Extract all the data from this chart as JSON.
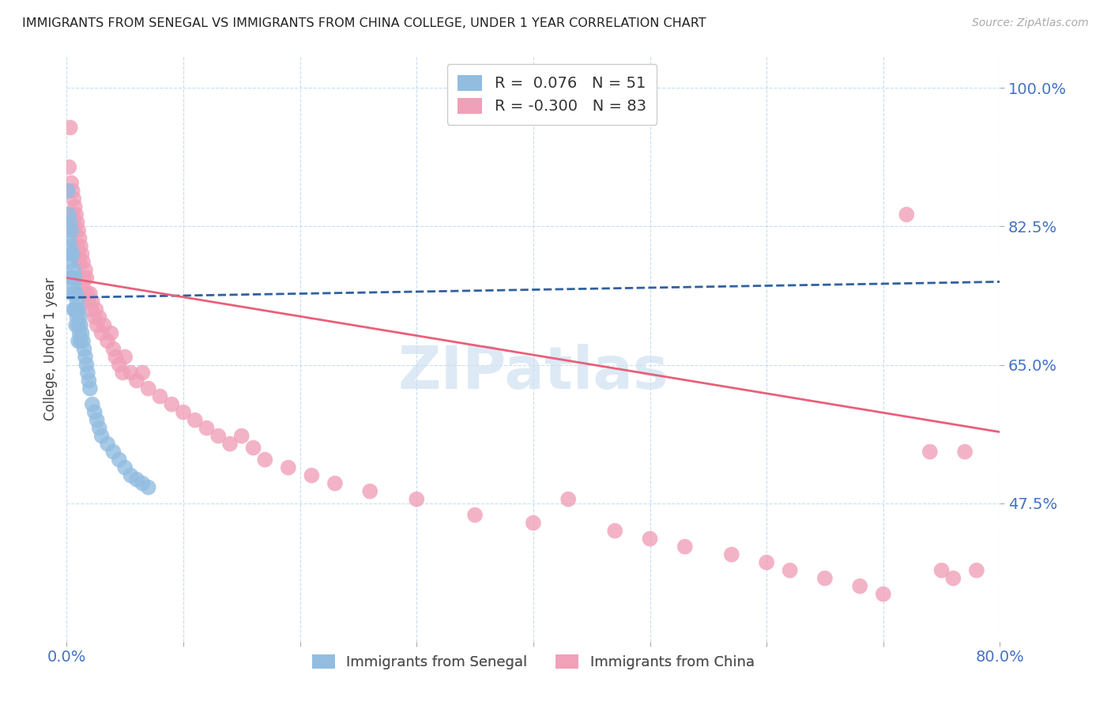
{
  "title": "IMMIGRANTS FROM SENEGAL VS IMMIGRANTS FROM CHINA COLLEGE, UNDER 1 YEAR CORRELATION CHART",
  "source": "Source: ZipAtlas.com",
  "ylabel": "College, Under 1 year",
  "x_min": 0.0,
  "x_max": 0.8,
  "y_min": 0.3,
  "y_max": 1.04,
  "y_ticks": [
    1.0,
    0.825,
    0.65,
    0.475
  ],
  "y_tick_labels": [
    "100.0%",
    "82.5%",
    "65.0%",
    "47.5%"
  ],
  "x_ticks": [
    0.0,
    0.1,
    0.2,
    0.3,
    0.4,
    0.5,
    0.6,
    0.7,
    0.8
  ],
  "x_tick_labels": [
    "0.0%",
    "",
    "",
    "",
    "",
    "",
    "",
    "",
    "80.0%"
  ],
  "legend_r_senegal": " 0.076",
  "legend_n_senegal": "51",
  "legend_r_china": "-0.300",
  "legend_n_china": "83",
  "senegal_dot_color": "#92bde0",
  "china_dot_color": "#f0a0b8",
  "senegal_line_color": "#3060a0",
  "china_line_color": "#e8607a",
  "axis_label_color": "#4472c4",
  "title_color": "#222222",
  "grid_color": "#c8ddf0",
  "watermark_color": "#cce0f0",
  "senegal_line_start_y": 0.735,
  "senegal_line_end_y": 0.755,
  "china_line_start_y": 0.76,
  "china_line_end_y": 0.565,
  "senegal_x": [
    0.001,
    0.002,
    0.002,
    0.003,
    0.003,
    0.003,
    0.004,
    0.004,
    0.004,
    0.005,
    0.005,
    0.005,
    0.006,
    0.006,
    0.006,
    0.007,
    0.007,
    0.007,
    0.008,
    0.008,
    0.008,
    0.009,
    0.009,
    0.01,
    0.01,
    0.01,
    0.011,
    0.011,
    0.012,
    0.012,
    0.013,
    0.014,
    0.015,
    0.016,
    0.017,
    0.018,
    0.019,
    0.02,
    0.022,
    0.024,
    0.026,
    0.028,
    0.03,
    0.035,
    0.04,
    0.045,
    0.05,
    0.055,
    0.06,
    0.065,
    0.07
  ],
  "senegal_y": [
    0.87,
    0.84,
    0.81,
    0.83,
    0.8,
    0.78,
    0.82,
    0.79,
    0.76,
    0.79,
    0.76,
    0.74,
    0.77,
    0.75,
    0.72,
    0.76,
    0.74,
    0.72,
    0.74,
    0.72,
    0.7,
    0.73,
    0.71,
    0.72,
    0.7,
    0.68,
    0.71,
    0.69,
    0.7,
    0.68,
    0.69,
    0.68,
    0.67,
    0.66,
    0.65,
    0.64,
    0.63,
    0.62,
    0.6,
    0.59,
    0.58,
    0.57,
    0.56,
    0.55,
    0.54,
    0.53,
    0.52,
    0.51,
    0.505,
    0.5,
    0.495
  ],
  "china_x": [
    0.002,
    0.003,
    0.004,
    0.005,
    0.005,
    0.006,
    0.006,
    0.007,
    0.007,
    0.008,
    0.008,
    0.009,
    0.009,
    0.01,
    0.01,
    0.011,
    0.011,
    0.012,
    0.013,
    0.013,
    0.014,
    0.014,
    0.015,
    0.016,
    0.016,
    0.017,
    0.018,
    0.019,
    0.02,
    0.021,
    0.022,
    0.024,
    0.025,
    0.026,
    0.028,
    0.03,
    0.032,
    0.035,
    0.038,
    0.04,
    0.042,
    0.045,
    0.048,
    0.05,
    0.055,
    0.06,
    0.065,
    0.07,
    0.08,
    0.09,
    0.1,
    0.11,
    0.12,
    0.13,
    0.14,
    0.15,
    0.16,
    0.17,
    0.19,
    0.21,
    0.23,
    0.26,
    0.3,
    0.35,
    0.4,
    0.43,
    0.47,
    0.5,
    0.53,
    0.57,
    0.6,
    0.62,
    0.65,
    0.68,
    0.7,
    0.72,
    0.74,
    0.75,
    0.76,
    0.77,
    0.78
  ],
  "china_y": [
    0.9,
    0.95,
    0.88,
    0.87,
    0.84,
    0.86,
    0.83,
    0.85,
    0.82,
    0.84,
    0.8,
    0.83,
    0.8,
    0.82,
    0.79,
    0.81,
    0.78,
    0.8,
    0.79,
    0.76,
    0.78,
    0.75,
    0.76,
    0.77,
    0.74,
    0.76,
    0.74,
    0.73,
    0.74,
    0.72,
    0.73,
    0.71,
    0.72,
    0.7,
    0.71,
    0.69,
    0.7,
    0.68,
    0.69,
    0.67,
    0.66,
    0.65,
    0.64,
    0.66,
    0.64,
    0.63,
    0.64,
    0.62,
    0.61,
    0.6,
    0.59,
    0.58,
    0.57,
    0.56,
    0.55,
    0.56,
    0.545,
    0.53,
    0.52,
    0.51,
    0.5,
    0.49,
    0.48,
    0.46,
    0.45,
    0.48,
    0.44,
    0.43,
    0.42,
    0.41,
    0.4,
    0.39,
    0.38,
    0.37,
    0.36,
    0.84,
    0.54,
    0.39,
    0.38,
    0.54,
    0.39
  ]
}
